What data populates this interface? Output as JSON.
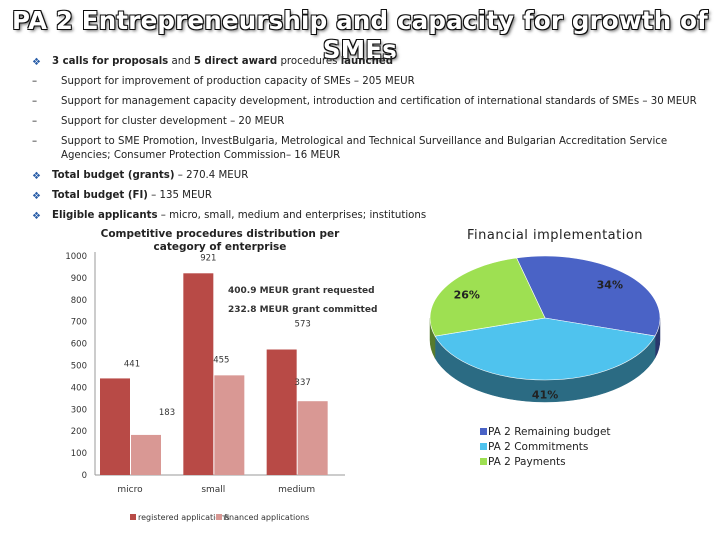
{
  "title": "PA 2 Entrepreneurship and capacity for growth of SMEs",
  "bullets": {
    "calls": {
      "bold_a": "3 calls for proposals",
      "mid": " and ",
      "bold_b": "5 direct award",
      "rest_a": " procedures ",
      "bold_c": "launched"
    },
    "sub": [
      "Support for improvement of production capacity of SMEs – 205 MEUR",
      "Support for management capacity development, introduction and certification of international standards of SMEs – 30 MEUR",
      "Support for cluster development – 20 MEUR",
      "Support to SME Promotion, InvestBulgaria, Metrological and Technical Surveillance and Bulgarian Accreditation Service Agencies; Consumer Protection Commission– 16 MEUR"
    ],
    "grants": {
      "bold": "Total budget (grants)",
      "rest": " – 270.4 MEUR"
    },
    "fi": {
      "bold": "Total budget (FI)",
      "rest": " – 135 MEUR"
    },
    "eligible": {
      "bold": "Eligible applicants",
      "rest": " – micro, small, medium and enterprises; institutions"
    }
  },
  "chart_data": [
    {
      "type": "bar",
      "title": "Competitive procedures distribution per category of enterprise",
      "categories": [
        "micro",
        "small",
        "medium"
      ],
      "series": [
        {
          "name": "registered applications",
          "values": [
            441,
            921,
            573
          ],
          "color": "#b84a46"
        },
        {
          "name": "financed applications",
          "values": [
            183,
            455,
            337
          ],
          "color": "#d99894"
        }
      ],
      "ylim": [
        0,
        1000
      ],
      "yticks": [
        0,
        100,
        200,
        300,
        400,
        500,
        600,
        700,
        800,
        900,
        1000
      ],
      "annotations": [
        "400.9 MEUR grant requested",
        "232.8 MEUR grant committed"
      ],
      "legend": "bottom"
    },
    {
      "type": "pie",
      "title": "Financial implementation",
      "labels": [
        "PA 2 Remaining budget",
        "PA 2 Commitments",
        "PA 2 Payments"
      ],
      "values": [
        34,
        41,
        26
      ],
      "value_labels": [
        "34%",
        "41%",
        "26%"
      ],
      "colors": [
        "#4a63c6",
        "#4fc3ee",
        "#9ee052"
      ],
      "legend": "right"
    }
  ]
}
